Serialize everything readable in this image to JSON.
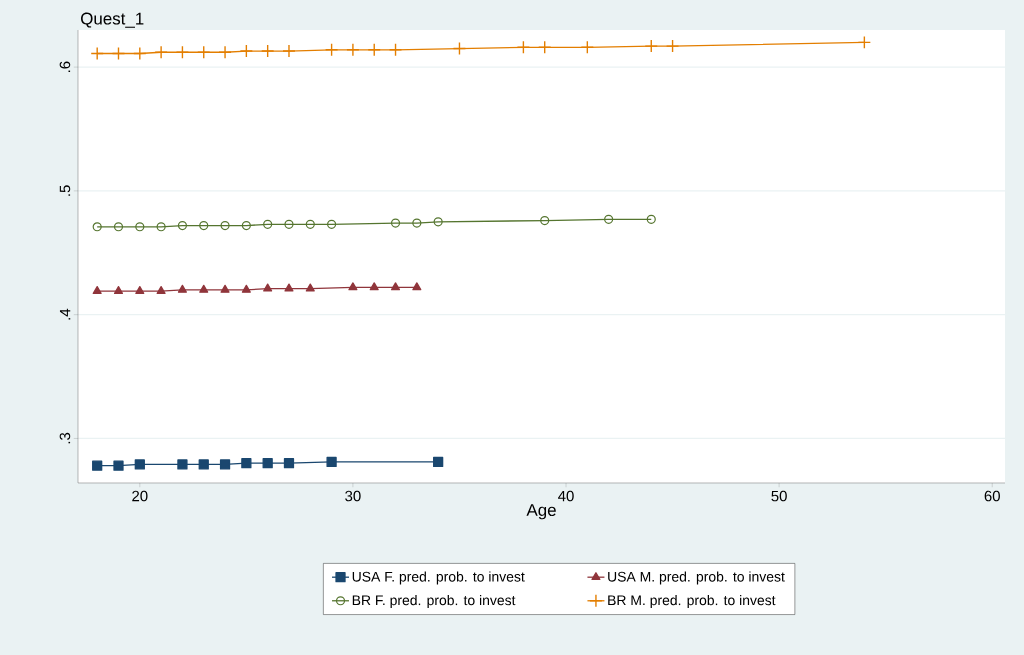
{
  "chart_data": {
    "type": "line",
    "ylabel": "Quest_1",
    "xlabel": "Age",
    "xlim": [
      17.1,
      60.6
    ],
    "ylim": [
      0.264,
      0.63
    ],
    "xticks": [
      20,
      30,
      40,
      50,
      60
    ],
    "yticks": [
      {
        "value": 0.3,
        "label": ".3"
      },
      {
        "value": 0.4,
        "label": ".4"
      },
      {
        "value": 0.5,
        "label": ".5"
      },
      {
        "value": 0.6,
        "label": ".6"
      }
    ],
    "grid": "y",
    "legend": "bottom",
    "line_style": "solid",
    "series": [
      {
        "name": "USA F. pred. prob. to invest",
        "color": "#1a476f",
        "marker": "square",
        "x": [
          18,
          19,
          20,
          22,
          23,
          24,
          25,
          26,
          27,
          29,
          34
        ],
        "values": [
          0.278,
          0.278,
          0.279,
          0.279,
          0.279,
          0.279,
          0.28,
          0.28,
          0.28,
          0.281,
          0.281
        ]
      },
      {
        "name": "USA M. pred. prob. to invest",
        "color": "#90353b",
        "marker": "triangle",
        "x": [
          18,
          19,
          20,
          21,
          22,
          23,
          24,
          25,
          26,
          27,
          28,
          30,
          31,
          32,
          33
        ],
        "values": [
          0.419,
          0.419,
          0.419,
          0.419,
          0.42,
          0.42,
          0.42,
          0.42,
          0.421,
          0.421,
          0.421,
          0.422,
          0.422,
          0.422,
          0.422
        ]
      },
      {
        "name": "BR F. pred. prob. to invest",
        "color": "#55752f",
        "marker": "circle",
        "x": [
          18,
          19,
          20,
          21,
          22,
          23,
          24,
          25,
          26,
          27,
          28,
          29,
          32,
          33,
          34,
          39,
          42,
          44
        ],
        "values": [
          0.471,
          0.471,
          0.471,
          0.471,
          0.472,
          0.472,
          0.472,
          0.472,
          0.473,
          0.473,
          0.473,
          0.473,
          0.474,
          0.474,
          0.475,
          0.476,
          0.477,
          0.477
        ]
      },
      {
        "name": "BR M. pred. prob. to invest",
        "color": "#e37e00",
        "marker": "cross",
        "x": [
          18,
          19,
          20,
          21,
          22,
          23,
          24,
          25,
          26,
          27,
          29,
          30,
          31,
          32,
          35,
          38,
          39,
          41,
          44,
          45,
          54
        ],
        "values": [
          0.611,
          0.611,
          0.611,
          0.612,
          0.612,
          0.612,
          0.612,
          0.613,
          0.613,
          0.613,
          0.614,
          0.614,
          0.614,
          0.614,
          0.615,
          0.616,
          0.616,
          0.616,
          0.617,
          0.617,
          0.62
        ]
      }
    ]
  }
}
